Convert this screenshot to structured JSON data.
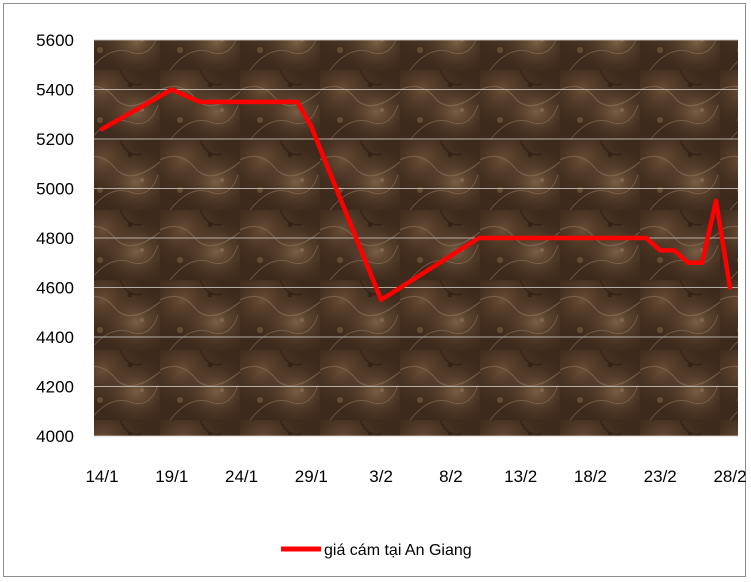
{
  "chart_data": {
    "type": "line",
    "title": "",
    "xlabel": "",
    "ylabel": "",
    "ylim": [
      4000,
      5600
    ],
    "yticks": [
      4000,
      4200,
      4400,
      4600,
      4800,
      5000,
      5200,
      5400,
      5600
    ],
    "xticks": [
      "14/1",
      "19/1",
      "24/1",
      "29/1",
      "3/2",
      "8/2",
      "13/2",
      "18/2",
      "23/2",
      "28/2"
    ],
    "x_day_range": [
      "14/1",
      "28/2"
    ],
    "grid": true,
    "legend": "bottom",
    "plot_background": "dark brown marble texture",
    "series": [
      {
        "name": "giá cám tại An Giang",
        "color": "#ff0000",
        "x": [
          "14/1",
          "19/1",
          "21/1",
          "28/1",
          "29/1",
          "3/2",
          "10/2",
          "13/2",
          "18/2",
          "22/2",
          "23/2",
          "24/2",
          "25/2",
          "26/2",
          "27/2",
          "28/2"
        ],
        "values": [
          5240,
          5400,
          5350,
          5350,
          5250,
          4550,
          4800,
          4800,
          4800,
          4800,
          4750,
          4750,
          4700,
          4700,
          4950,
          4600
        ]
      }
    ]
  }
}
